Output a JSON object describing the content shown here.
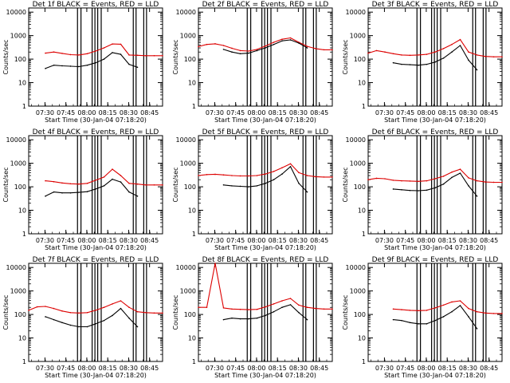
{
  "chart_data": [
    {
      "type": "line",
      "title": "Det 1f BLACK = Events, RED = LLD",
      "xlabel": "Start Time (30-Jan-04 07:18:20)",
      "ylabel": "Counts/sec",
      "xticks": [
        "07:30",
        "07:45",
        "08:00",
        "08:15",
        "08:30",
        "08:45"
      ],
      "yticks": [
        "1",
        "10",
        "100",
        "1000",
        "10000"
      ],
      "ylim": [
        1,
        15000
      ],
      "yscale": "log",
      "x": [
        0,
        6,
        12,
        18,
        24,
        30,
        36,
        42,
        48,
        54,
        60,
        66,
        72,
        78,
        84,
        90,
        96
      ],
      "series": [
        {
          "name": "RED = LLD",
          "color": "#dd0000",
          "values": [
            null,
            null,
            180,
            200,
            175,
            155,
            150,
            170,
            220,
            300,
            440,
            430,
            150,
            145,
            140,
            140,
            140
          ]
        },
        {
          "name": "BLACK = Events",
          "color": "#000000",
          "values": [
            null,
            null,
            40,
            55,
            52,
            50,
            48,
            55,
            70,
            100,
            190,
            160,
            60,
            45,
            null,
            null,
            null
          ]
        }
      ]
    },
    {
      "type": "line",
      "title": "Det 2f BLACK = Events, RED = LLD",
      "xlabel": "Start Time (30-Jan-04 07:18:20)",
      "ylabel": "Counts/sec",
      "xticks": [
        "07:30",
        "07:45",
        "08:00",
        "08:15",
        "08:30",
        "08:45"
      ],
      "yticks": [
        "1",
        "10",
        "100",
        "1000",
        "10000"
      ],
      "ylim": [
        1,
        15000
      ],
      "yscale": "log",
      "x": [
        0,
        6,
        12,
        18,
        24,
        30,
        36,
        42,
        48,
        54,
        60,
        66,
        72,
        78,
        84,
        90,
        96
      ],
      "series": [
        {
          "name": "RED = LLD",
          "color": "#dd0000",
          "values": [
            340,
            420,
            450,
            380,
            290,
            230,
            220,
            260,
            360,
            520,
            700,
            800,
            520,
            350,
            280,
            250,
            250
          ]
        },
        {
          "name": "BLACK = Events",
          "color": "#000000",
          "values": [
            null,
            null,
            null,
            260,
            200,
            170,
            180,
            230,
            300,
            420,
            600,
            660,
            480,
            300,
            null,
            null,
            null
          ]
        }
      ]
    },
    {
      "type": "line",
      "title": "Det 3f BLACK = Events, RED = LLD",
      "xlabel": "Start Time (30-Jan-04 07:18:20)",
      "ylabel": "Counts/sec",
      "xticks": [
        "07:30",
        "07:45",
        "08:00",
        "08:15",
        "08:30",
        "08:45"
      ],
      "yticks": [
        "1",
        "10",
        "100",
        "1000",
        "10000"
      ],
      "ylim": [
        1,
        15000
      ],
      "yscale": "log",
      "x": [
        0,
        6,
        12,
        18,
        24,
        30,
        36,
        42,
        48,
        54,
        60,
        66,
        72,
        78,
        84,
        90,
        96
      ],
      "series": [
        {
          "name": "RED = LLD",
          "color": "#dd0000",
          "values": [
            180,
            230,
            200,
            170,
            150,
            145,
            150,
            160,
            200,
            280,
            420,
            680,
            200,
            150,
            130,
            125,
            125
          ]
        },
        {
          "name": "BLACK = Events",
          "color": "#000000",
          "values": [
            null,
            null,
            null,
            70,
            60,
            58,
            55,
            60,
            75,
            110,
            200,
            380,
            90,
            35,
            null,
            null,
            null
          ]
        }
      ]
    },
    {
      "type": "line",
      "title": "Det 4f BLACK = Events, RED = LLD",
      "xlabel": "Start Time (30-Jan-04 07:18:20)",
      "ylabel": "Counts/sec",
      "xticks": [
        "07:30",
        "07:45",
        "08:00",
        "08:15",
        "08:30",
        "08:45"
      ],
      "yticks": [
        "1",
        "10",
        "100",
        "1000",
        "10000"
      ],
      "ylim": [
        1,
        15000
      ],
      "yscale": "log",
      "x": [
        0,
        6,
        12,
        18,
        24,
        30,
        36,
        42,
        48,
        54,
        60,
        66,
        72,
        78,
        84,
        90,
        96
      ],
      "series": [
        {
          "name": "RED = LLD",
          "color": "#dd0000",
          "values": [
            null,
            null,
            180,
            165,
            145,
            135,
            130,
            140,
            190,
            260,
            560,
            300,
            140,
            130,
            120,
            120,
            120
          ]
        },
        {
          "name": "BLACK = Events",
          "color": "#000000",
          "values": [
            null,
            null,
            40,
            60,
            55,
            55,
            58,
            62,
            80,
            110,
            210,
            160,
            60,
            40,
            null,
            null,
            null
          ]
        }
      ]
    },
    {
      "type": "line",
      "title": "Det 5f BLACK = Events, RED = LLD",
      "xlabel": "Start Time (30-Jan-04 07:18:20)",
      "ylabel": "Counts/sec",
      "xticks": [
        "07:30",
        "07:45",
        "08:00",
        "08:15",
        "08:30",
        "08:45"
      ],
      "yticks": [
        "1",
        "10",
        "100",
        "1000",
        "10000"
      ],
      "ylim": [
        1,
        15000
      ],
      "yscale": "log",
      "x": [
        0,
        6,
        12,
        18,
        24,
        30,
        36,
        42,
        48,
        54,
        60,
        66,
        72,
        78,
        84,
        90,
        96
      ],
      "series": [
        {
          "name": "RED = LLD",
          "color": "#dd0000",
          "values": [
            300,
            330,
            340,
            320,
            300,
            290,
            290,
            300,
            350,
            450,
            650,
            950,
            400,
            300,
            270,
            260,
            260
          ]
        },
        {
          "name": "BLACK = Events",
          "color": "#000000",
          "values": [
            null,
            null,
            null,
            120,
            110,
            105,
            100,
            110,
            140,
            200,
            350,
            720,
            140,
            60,
            null,
            null,
            null
          ]
        }
      ]
    },
    {
      "type": "line",
      "title": "Det 6f BLACK = Events, RED = LLD",
      "xlabel": "Start Time (30-Jan-04 07:18:20)",
      "ylabel": "Counts/sec",
      "xticks": [
        "07:30",
        "07:45",
        "08:00",
        "08:15",
        "08:30",
        "08:45"
      ],
      "yticks": [
        "1",
        "10",
        "100",
        "1000",
        "10000"
      ],
      "ylim": [
        1,
        15000
      ],
      "yscale": "log",
      "x": [
        0,
        6,
        12,
        18,
        24,
        30,
        36,
        42,
        48,
        54,
        60,
        66,
        72,
        78,
        84,
        90,
        96
      ],
      "series": [
        {
          "name": "RED = LLD",
          "color": "#dd0000",
          "values": [
            200,
            230,
            220,
            190,
            180,
            175,
            170,
            180,
            220,
            280,
            420,
            560,
            240,
            180,
            160,
            155,
            155
          ]
        },
        {
          "name": "BLACK = Events",
          "color": "#000000",
          "values": [
            null,
            null,
            null,
            80,
            75,
            70,
            68,
            72,
            90,
            130,
            250,
            380,
            110,
            40,
            null,
            null,
            null
          ]
        }
      ]
    },
    {
      "type": "line",
      "title": "Det 7f BLACK = Events, RED = LLD",
      "xlabel": "Start Time (30-Jan-04 07:18:20)",
      "ylabel": "Counts/sec",
      "xticks": [
        "07:30",
        "07:45",
        "08:00",
        "08:15",
        "08:30",
        "08:45"
      ],
      "yticks": [
        "1",
        "10",
        "100",
        "1000",
        "10000"
      ],
      "ylim": [
        1,
        15000
      ],
      "yscale": "log",
      "x": [
        0,
        6,
        12,
        18,
        24,
        30,
        36,
        42,
        48,
        54,
        60,
        66,
        72,
        78,
        84,
        90,
        96
      ],
      "series": [
        {
          "name": "RED = LLD",
          "color": "#dd0000",
          "values": [
            150,
            210,
            220,
            180,
            140,
            120,
            115,
            120,
            150,
            200,
            280,
            380,
            200,
            130,
            120,
            115,
            115
          ]
        },
        {
          "name": "BLACK = Events",
          "color": "#000000",
          "values": [
            null,
            null,
            80,
            60,
            45,
            35,
            30,
            30,
            40,
            55,
            90,
            180,
            70,
            30,
            null,
            null,
            null
          ]
        }
      ]
    },
    {
      "type": "line",
      "title": "Det 8f BLACK = Events, RED = LLD",
      "xlabel": "Start Time (30-Jan-04 07:18:20)",
      "ylabel": "Counts/sec",
      "xticks": [
        "07:30",
        "07:45",
        "08:00",
        "08:15",
        "08:30",
        "08:45"
      ],
      "yticks": [
        "1",
        "10",
        "100",
        "1000",
        "10000"
      ],
      "ylim": [
        1,
        15000
      ],
      "yscale": "log",
      "x": [
        0,
        6,
        12,
        18,
        24,
        30,
        36,
        42,
        48,
        54,
        60,
        66,
        72,
        78,
        84,
        90,
        96
      ],
      "series": [
        {
          "name": "RED = LLD",
          "color": "#dd0000",
          "values": [
            200,
            200,
            15000,
            190,
            170,
            165,
            160,
            165,
            210,
            280,
            380,
            480,
            250,
            200,
            180,
            170,
            170
          ]
        },
        {
          "name": "BLACK = Events",
          "color": "#000000",
          "values": [
            null,
            null,
            null,
            60,
            70,
            65,
            65,
            70,
            90,
            130,
            200,
            260,
            120,
            60,
            null,
            null,
            null
          ]
        }
      ]
    },
    {
      "type": "line",
      "title": "Det 9f BLACK = Events, RED = LLD",
      "xlabel": "Start Time (30-Jan-04 07:18:20)",
      "ylabel": "Counts/sec",
      "xticks": [
        "07:30",
        "07:45",
        "08:00",
        "08:15",
        "08:30",
        "08:45"
      ],
      "yticks": [
        "1",
        "10",
        "100",
        "1000",
        "10000"
      ],
      "ylim": [
        1,
        15000
      ],
      "yscale": "log",
      "x": [
        0,
        6,
        12,
        18,
        24,
        30,
        36,
        42,
        48,
        54,
        60,
        66,
        72,
        78,
        84,
        90,
        96
      ],
      "series": [
        {
          "name": "RED = LLD",
          "color": "#dd0000",
          "values": [
            null,
            null,
            null,
            170,
            160,
            150,
            145,
            150,
            190,
            250,
            340,
            380,
            180,
            130,
            115,
            110,
            110
          ]
        },
        {
          "name": "BLACK = Events",
          "color": "#000000",
          "values": [
            null,
            null,
            null,
            60,
            55,
            45,
            40,
            40,
            55,
            80,
            130,
            240,
            80,
            25,
            null,
            null,
            null
          ]
        }
      ]
    }
  ]
}
